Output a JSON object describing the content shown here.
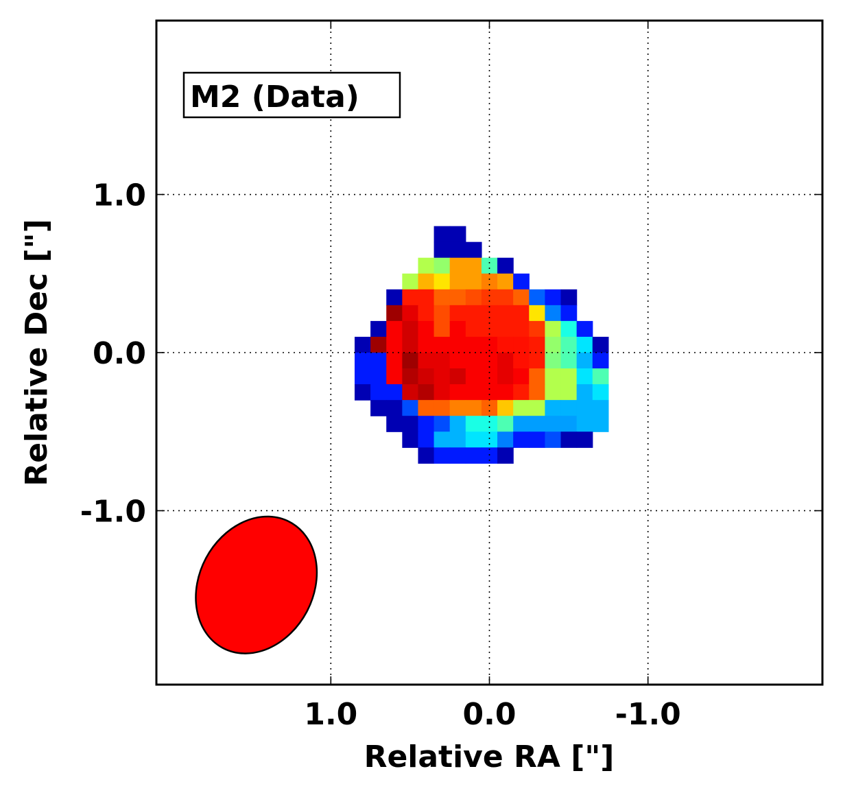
{
  "chart_data": {
    "type": "heatmap",
    "title": "M2 (Data)",
    "xlabel": "Relative RA [\"]",
    "ylabel": "Relative Dec [\"]",
    "xlim": [
      2.1,
      -2.1
    ],
    "ylim": [
      -2.1,
      2.1
    ],
    "x_inverted": true,
    "xticks": [
      1.0,
      0.0,
      -1.0
    ],
    "xtick_labels": [
      "1.0",
      "0.0",
      "-1.0"
    ],
    "yticks": [
      1.0,
      0.0,
      -1.0
    ],
    "ytick_labels": [
      "1.0",
      "0.0",
      "-1.0"
    ],
    "grid": true,
    "pixel_size_arcsec": 0.1,
    "grid_origin": {
      "ra_left_edge": 0.85,
      "dec_top_edge": 0.8
    },
    "colormap": "jet",
    "color_scale": [
      0,
      1
    ],
    "pixels": [
      [
        null,
        null,
        null,
        null,
        null,
        0.05,
        0.05,
        null,
        null,
        null,
        null,
        null,
        null,
        null,
        null,
        null
      ],
      [
        null,
        null,
        null,
        null,
        null,
        0.05,
        0.05,
        0.05,
        null,
        null,
        null,
        null,
        null,
        null,
        null,
        null
      ],
      [
        null,
        null,
        null,
        null,
        0.55,
        0.52,
        0.72,
        0.72,
        0.45,
        0.05,
        null,
        null,
        null,
        null,
        null,
        null
      ],
      [
        null,
        null,
        null,
        0.55,
        0.7,
        0.65,
        0.72,
        0.72,
        0.75,
        0.72,
        0.15,
        null,
        null,
        null,
        null,
        null
      ],
      [
        null,
        null,
        0.05,
        0.85,
        0.85,
        0.78,
        0.78,
        0.8,
        0.82,
        0.82,
        0.78,
        0.22,
        0.15,
        0.05,
        null,
        null
      ],
      [
        null,
        null,
        0.97,
        0.9,
        0.85,
        0.8,
        0.85,
        0.85,
        0.85,
        0.85,
        0.85,
        0.65,
        0.25,
        0.15,
        null,
        null
      ],
      [
        null,
        0.05,
        0.88,
        0.92,
        0.88,
        0.8,
        0.88,
        0.85,
        0.85,
        0.85,
        0.85,
        0.82,
        0.55,
        0.4,
        0.15,
        null
      ],
      [
        0.05,
        0.97,
        0.88,
        0.92,
        0.88,
        0.88,
        0.88,
        0.88,
        0.88,
        0.86,
        0.86,
        0.85,
        0.52,
        0.45,
        0.35,
        0.05
      ],
      [
        0.15,
        0.15,
        0.88,
        0.97,
        0.9,
        0.9,
        0.88,
        0.88,
        0.88,
        0.9,
        0.86,
        0.85,
        0.5,
        0.45,
        0.3,
        0.15
      ],
      [
        0.15,
        0.15,
        0.88,
        0.95,
        0.92,
        0.9,
        0.92,
        0.88,
        0.88,
        0.9,
        0.88,
        0.78,
        0.55,
        0.55,
        0.35,
        0.45
      ],
      [
        0.05,
        0.15,
        0.15,
        0.92,
        0.95,
        0.9,
        0.88,
        0.88,
        0.88,
        0.88,
        0.85,
        0.78,
        0.55,
        0.55,
        0.3,
        0.35
      ],
      [
        null,
        0.05,
        0.05,
        0.2,
        0.78,
        0.78,
        0.75,
        0.75,
        0.78,
        0.68,
        0.55,
        0.55,
        0.3,
        0.3,
        0.3,
        0.3
      ],
      [
        null,
        null,
        0.05,
        0.05,
        0.15,
        0.2,
        0.3,
        0.4,
        0.4,
        0.45,
        0.28,
        0.28,
        0.28,
        0.28,
        0.3,
        0.3
      ],
      [
        null,
        null,
        null,
        0.05,
        0.15,
        0.3,
        0.3,
        0.35,
        0.35,
        0.25,
        0.15,
        0.15,
        0.2,
        0.05,
        0.05,
        null
      ],
      [
        null,
        null,
        null,
        null,
        0.05,
        0.15,
        0.15,
        0.15,
        0.15,
        0.05,
        null,
        null,
        null,
        null,
        null,
        null
      ]
    ],
    "beam": {
      "center_ra": 1.47,
      "center_dec": -1.47,
      "major_arcsec": 0.9,
      "minor_arcsec": 0.72,
      "position_angle_deg": 152,
      "fill": "#ff0000",
      "edge": "#000000"
    },
    "label_box_position": "top-left"
  }
}
